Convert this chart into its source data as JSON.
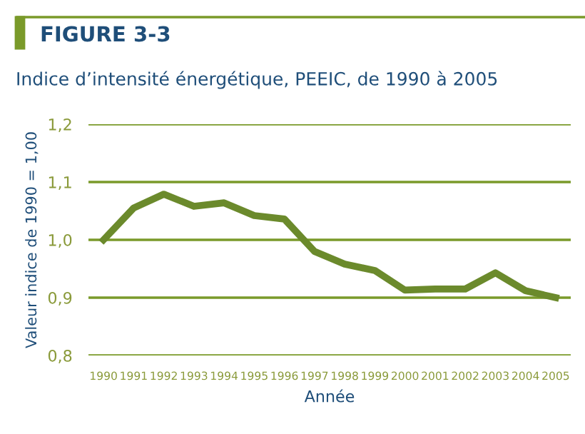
{
  "chart_data": {
    "type": "line",
    "title": "FIGURE 3-3",
    "subtitle": "Indice d’intensité énergétique, PEEIC, de 1990 à 2005",
    "xlabel": "Année",
    "ylabel": "Valeur indice de 1990 = 1,00",
    "categories": [
      "1990",
      "1991",
      "1992",
      "1993",
      "1994",
      "1995",
      "1996",
      "1997",
      "1998",
      "1999",
      "2000",
      "2001",
      "2002",
      "2003",
      "2004",
      "2005"
    ],
    "series": [
      {
        "color": "#6b8a2c",
        "values": [
          1.0,
          1.055,
          1.079,
          1.058,
          1.064,
          1.042,
          1.036,
          0.98,
          0.958,
          0.947,
          0.913,
          0.915,
          0.915,
          0.943,
          0.912,
          0.9
        ]
      }
    ],
    "ylim": [
      0.8,
      1.2
    ],
    "yticks": [
      {
        "value": 0.8,
        "label": "0,8"
      },
      {
        "value": 0.9,
        "label": "0,9"
      },
      {
        "value": 1.0,
        "label": "1,0"
      },
      {
        "value": 1.1,
        "label": "1,1"
      },
      {
        "value": 1.2,
        "label": "1,2"
      }
    ],
    "grid": "y",
    "marker": "none",
    "line_style": "solid"
  }
}
